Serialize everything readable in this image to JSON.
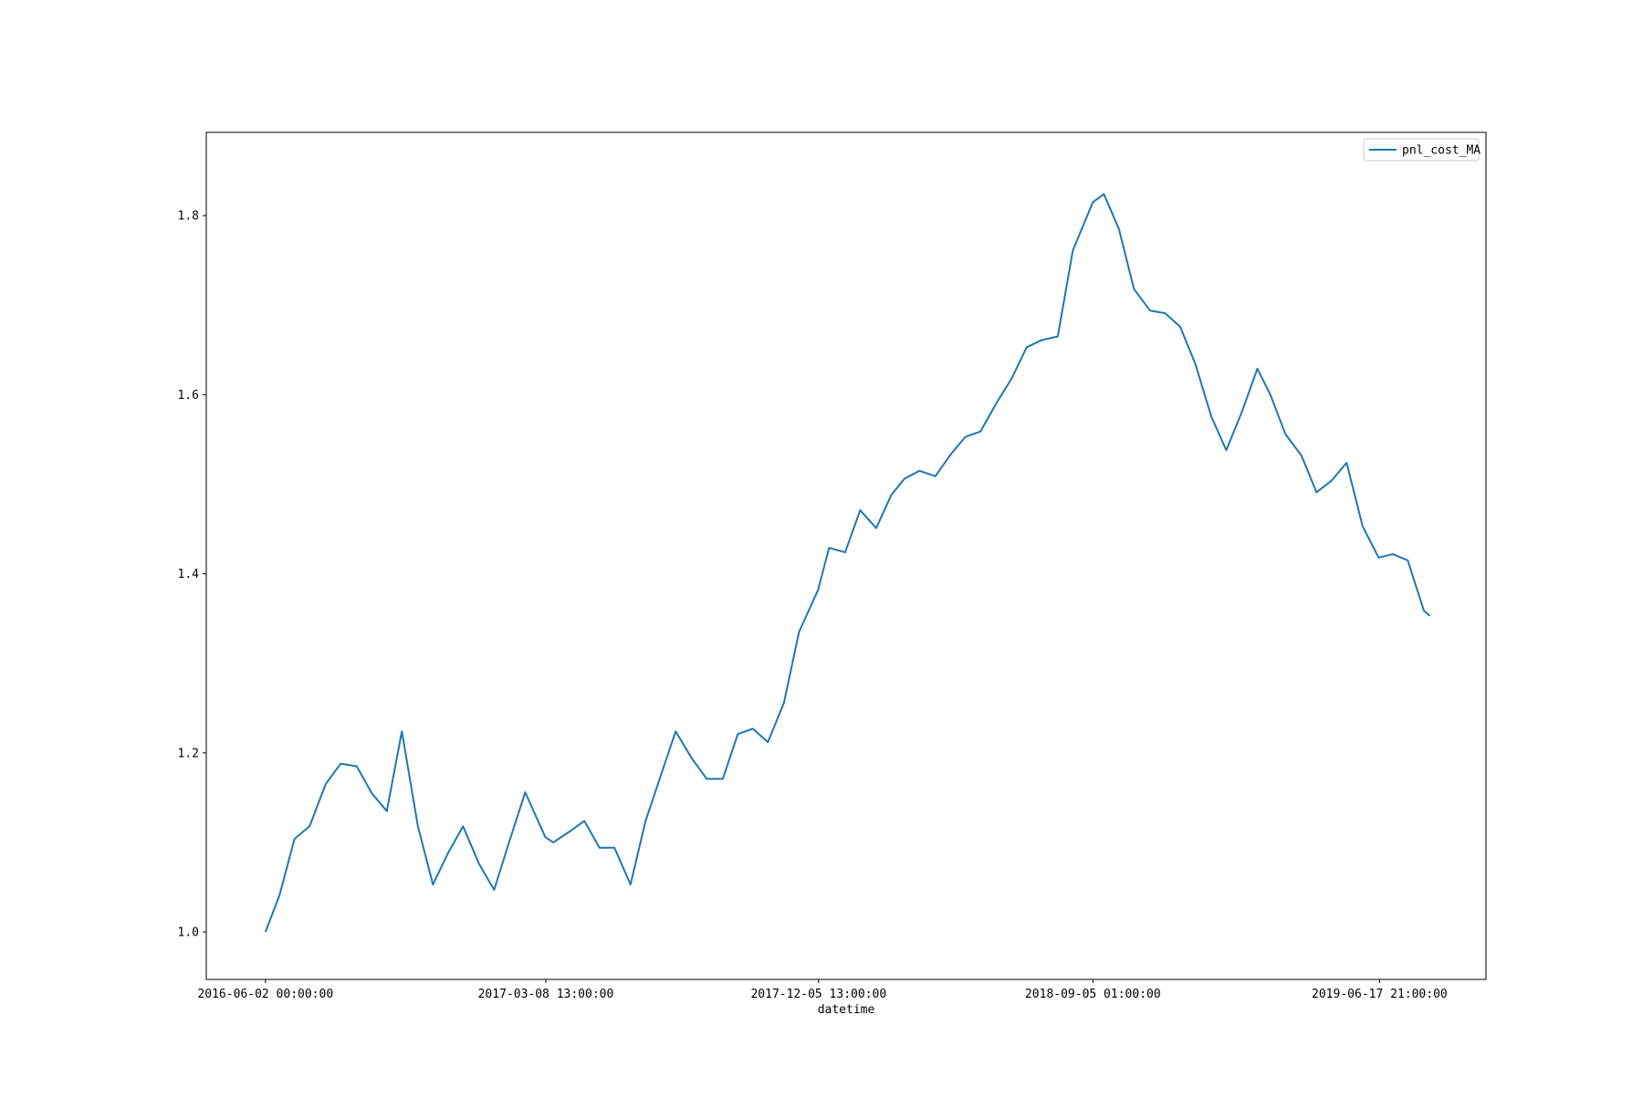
{
  "chart_data": {
    "type": "line",
    "xlabel": "datetime",
    "x": [
      "2016-06-02",
      "2016-06-16",
      "2016-07-01",
      "2016-07-16",
      "2016-08-01",
      "2016-08-16",
      "2016-09-01",
      "2016-09-16",
      "2016-10-01",
      "2016-10-16",
      "2016-11-01",
      "2016-11-16",
      "2016-12-01",
      "2016-12-16",
      "2017-01-01",
      "2017-01-16",
      "2017-02-01",
      "2017-02-16",
      "2017-03-08",
      "2017-03-16",
      "2017-04-01",
      "2017-04-16",
      "2017-05-01",
      "2017-05-16",
      "2017-06-01",
      "2017-06-16",
      "2017-07-01",
      "2017-07-16",
      "2017-08-01",
      "2017-08-16",
      "2017-09-01",
      "2017-09-16",
      "2017-10-01",
      "2017-10-16",
      "2017-11-01",
      "2017-11-16",
      "2017-12-05",
      "2017-12-16",
      "2018-01-01",
      "2018-01-16",
      "2018-02-01",
      "2018-02-16",
      "2018-03-01",
      "2018-03-16",
      "2018-04-01",
      "2018-04-16",
      "2018-05-01",
      "2018-05-16",
      "2018-06-01",
      "2018-06-16",
      "2018-07-01",
      "2018-07-16",
      "2018-08-01",
      "2018-08-16",
      "2018-09-05",
      "2018-09-16",
      "2018-10-01",
      "2018-10-16",
      "2018-11-01",
      "2018-11-16",
      "2018-12-01",
      "2018-12-16",
      "2019-01-01",
      "2019-01-16",
      "2019-02-01",
      "2019-02-16",
      "2019-03-01",
      "2019-03-16",
      "2019-04-01",
      "2019-04-16",
      "2019-05-01",
      "2019-05-16",
      "2019-06-01",
      "2019-06-17",
      "2019-07-01",
      "2019-07-16",
      "2019-08-01",
      "2019-08-07"
    ],
    "series": [
      {
        "name": "pnl_cost_MA",
        "color": "#1f77b4",
        "values": [
          1.0,
          1.041,
          1.104,
          1.118,
          1.165,
          1.188,
          1.185,
          1.155,
          1.135,
          1.224,
          1.118,
          1.053,
          1.088,
          1.118,
          1.076,
          1.047,
          1.104,
          1.156,
          1.106,
          1.1,
          1.112,
          1.124,
          1.094,
          1.094,
          1.053,
          1.124,
          1.174,
          1.224,
          1.194,
          1.171,
          1.171,
          1.221,
          1.227,
          1.212,
          1.256,
          1.335,
          1.382,
          1.429,
          1.424,
          1.471,
          1.451,
          1.488,
          1.506,
          1.515,
          1.509,
          1.533,
          1.553,
          1.559,
          1.591,
          1.618,
          1.653,
          1.661,
          1.665,
          1.761,
          1.815,
          1.824,
          1.785,
          1.718,
          1.694,
          1.691,
          1.676,
          1.635,
          1.576,
          1.538,
          1.582,
          1.629,
          1.6,
          1.556,
          1.532,
          1.491,
          1.504,
          1.524,
          1.453,
          1.418,
          1.422,
          1.415,
          1.359,
          1.353
        ]
      }
    ],
    "xlim": [
      "2016-04-04",
      "2019-10-02"
    ],
    "xticks": [
      "2016-06-02 00:00:00",
      "2017-03-08 13:00:00",
      "2017-12-05 13:00:00",
      "2018-09-05 01:00:00",
      "2019-06-17 21:00:00"
    ],
    "ylim": [
      0.947,
      1.893
    ],
    "yticks": [
      {
        "value": 1,
        "label": "1.0"
      },
      1.2,
      1.4,
      1.6,
      1.8
    ],
    "grid": false,
    "legend": "upper right"
  }
}
